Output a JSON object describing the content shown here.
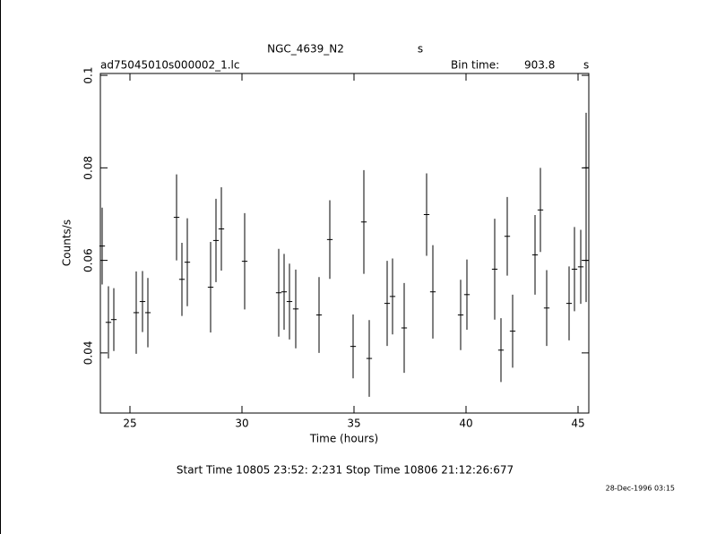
{
  "chart_data": {
    "type": "errorbar",
    "title": "NGC_4639_N2",
    "title_suffix": "s",
    "file_label": "ad75045010s000002_1.lc",
    "bin_time_label": "Bin time:",
    "bin_time_value": 903.8,
    "bin_time_unit": "s",
    "x_label": "Time (hours)",
    "y_label": "Counts/s",
    "footer": "Start Time 10805 23:52: 2:231    Stop Time 10806 21:12:26:677",
    "date": "28-Dec-1996 03:15",
    "color": "#000000",
    "xlim": [
      23.68,
      45.48
    ],
    "xticks": [
      25,
      30,
      35,
      40,
      45
    ],
    "ylim": [
      0.027,
      0.1004
    ],
    "yticks": [
      0.04,
      0.06,
      0.08,
      0.1
    ],
    "x": [
      23.76,
      24.04,
      24.28,
      25.28,
      25.56,
      25.8,
      27.08,
      27.32,
      27.56,
      28.6,
      28.84,
      29.08,
      30.12,
      31.64,
      31.88,
      32.12,
      32.4,
      33.44,
      33.92,
      34.96,
      35.44,
      35.68,
      36.48,
      36.72,
      37.24,
      38.24,
      38.52,
      39.76,
      40.04,
      41.28,
      41.56,
      41.84,
      42.08,
      43.08,
      43.32,
      43.6,
      44.6,
      44.84,
      45.12,
      45.36,
      45.36
    ],
    "values": [
      0.0631,
      0.0466,
      0.0472,
      0.0487,
      0.0511,
      0.0487,
      0.0693,
      0.0559,
      0.0596,
      0.0542,
      0.0643,
      0.0668,
      0.0598,
      0.053,
      0.0532,
      0.0511,
      0.0495,
      0.0482,
      0.0645,
      0.0414,
      0.0683,
      0.0388,
      0.0507,
      0.0522,
      0.0454,
      0.0699,
      0.0532,
      0.0482,
      0.0526,
      0.0581,
      0.0406,
      0.0652,
      0.0447,
      0.0612,
      0.0709,
      0.0497,
      0.0507,
      0.0581,
      0.0586,
      0.08,
      0.06
    ],
    "errors": [
      0.0083,
      0.0078,
      0.0068,
      0.0089,
      0.0066,
      0.0075,
      0.0093,
      0.0079,
      0.0095,
      0.0098,
      0.009,
      0.009,
      0.0104,
      0.0095,
      0.0082,
      0.0082,
      0.0085,
      0.0082,
      0.0085,
      0.0069,
      0.0112,
      0.0083,
      0.0092,
      0.0082,
      0.0097,
      0.0089,
      0.0101,
      0.0076,
      0.0076,
      0.0109,
      0.0069,
      0.0085,
      0.0079,
      0.0086,
      0.0091,
      0.0082,
      0.008,
      0.0091,
      0.008,
      0.0119,
      0.009
    ]
  }
}
